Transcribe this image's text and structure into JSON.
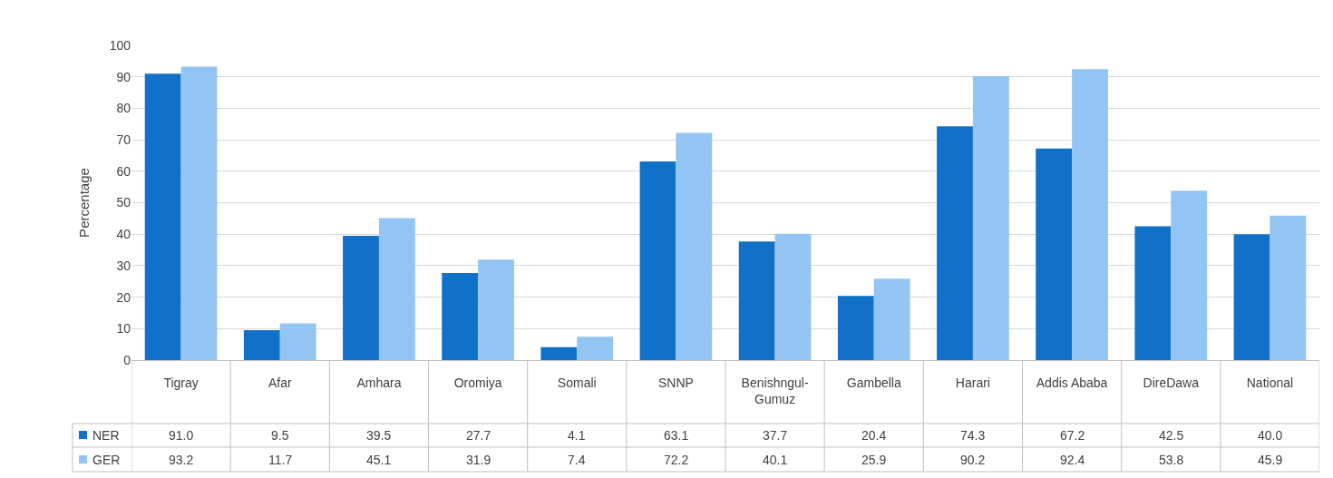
{
  "chart_data": {
    "type": "bar",
    "ylabel": "Percentage",
    "categories": [
      "Tigray",
      "Afar",
      "Amhara",
      "Oromiya",
      "Somali",
      "SNNP",
      "Benishngul-Gumuz",
      "Gambella",
      "Harari",
      "Addis Ababa",
      "DireDawa",
      "National"
    ],
    "series": [
      {
        "name": "NER",
        "color": "#1170c8",
        "values": [
          91.0,
          9.5,
          39.5,
          27.7,
          4.1,
          63.1,
          37.7,
          20.4,
          74.3,
          67.2,
          42.5,
          40.0
        ],
        "value_labels": [
          "91.0",
          "9.5",
          "39.5",
          "27.7",
          "4.1",
          "63.1",
          "37.7",
          "20.4",
          "74.3",
          "67.2",
          "42.5",
          "40.0"
        ]
      },
      {
        "name": "GER",
        "color": "#92c5f3",
        "values": [
          93.2,
          11.7,
          45.1,
          31.9,
          7.4,
          72.2,
          40.1,
          25.9,
          90.2,
          92.4,
          53.8,
          45.9
        ],
        "value_labels": [
          "93.2",
          "11.7",
          "45.1",
          "31.9",
          "7.4",
          "72.2",
          "40.1",
          "25.9",
          "90.2",
          "92.4",
          "53.8",
          "45.9"
        ]
      }
    ],
    "ylim": [
      0,
      100
    ],
    "yticks": [
      0,
      10,
      20,
      30,
      40,
      50,
      60,
      70,
      80,
      90,
      100
    ],
    "grid": "y",
    "legend": "bottom"
  }
}
